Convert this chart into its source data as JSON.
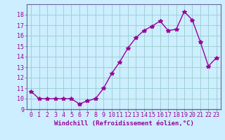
{
  "x": [
    0,
    1,
    2,
    3,
    4,
    5,
    6,
    7,
    8,
    9,
    10,
    11,
    12,
    13,
    14,
    15,
    16,
    17,
    18,
    19,
    20,
    21,
    22,
    23
  ],
  "y": [
    10.7,
    10.0,
    10.0,
    10.0,
    10.0,
    10.0,
    9.5,
    9.8,
    10.0,
    11.0,
    12.4,
    13.5,
    14.8,
    15.8,
    16.5,
    16.9,
    17.4,
    16.5,
    16.6,
    18.3,
    17.5,
    15.4,
    13.1,
    13.9
  ],
  "line_color": "#990099",
  "marker": "*",
  "markersize": 4,
  "bg_color": "#cceeff",
  "grid_color": "#99cccc",
  "xlabel": "Windchill (Refroidissement éolien,°C)",
  "xlabel_fontsize": 6.5,
  "tick_fontsize": 6,
  "ylim": [
    9,
    19
  ],
  "yticks": [
    9,
    10,
    11,
    12,
    13,
    14,
    15,
    16,
    17,
    18
  ],
  "xlim": [
    -0.5,
    23.5
  ],
  "xticks": [
    0,
    1,
    2,
    3,
    4,
    5,
    6,
    7,
    8,
    9,
    10,
    11,
    12,
    13,
    14,
    15,
    16,
    17,
    18,
    19,
    20,
    21,
    22,
    23
  ]
}
